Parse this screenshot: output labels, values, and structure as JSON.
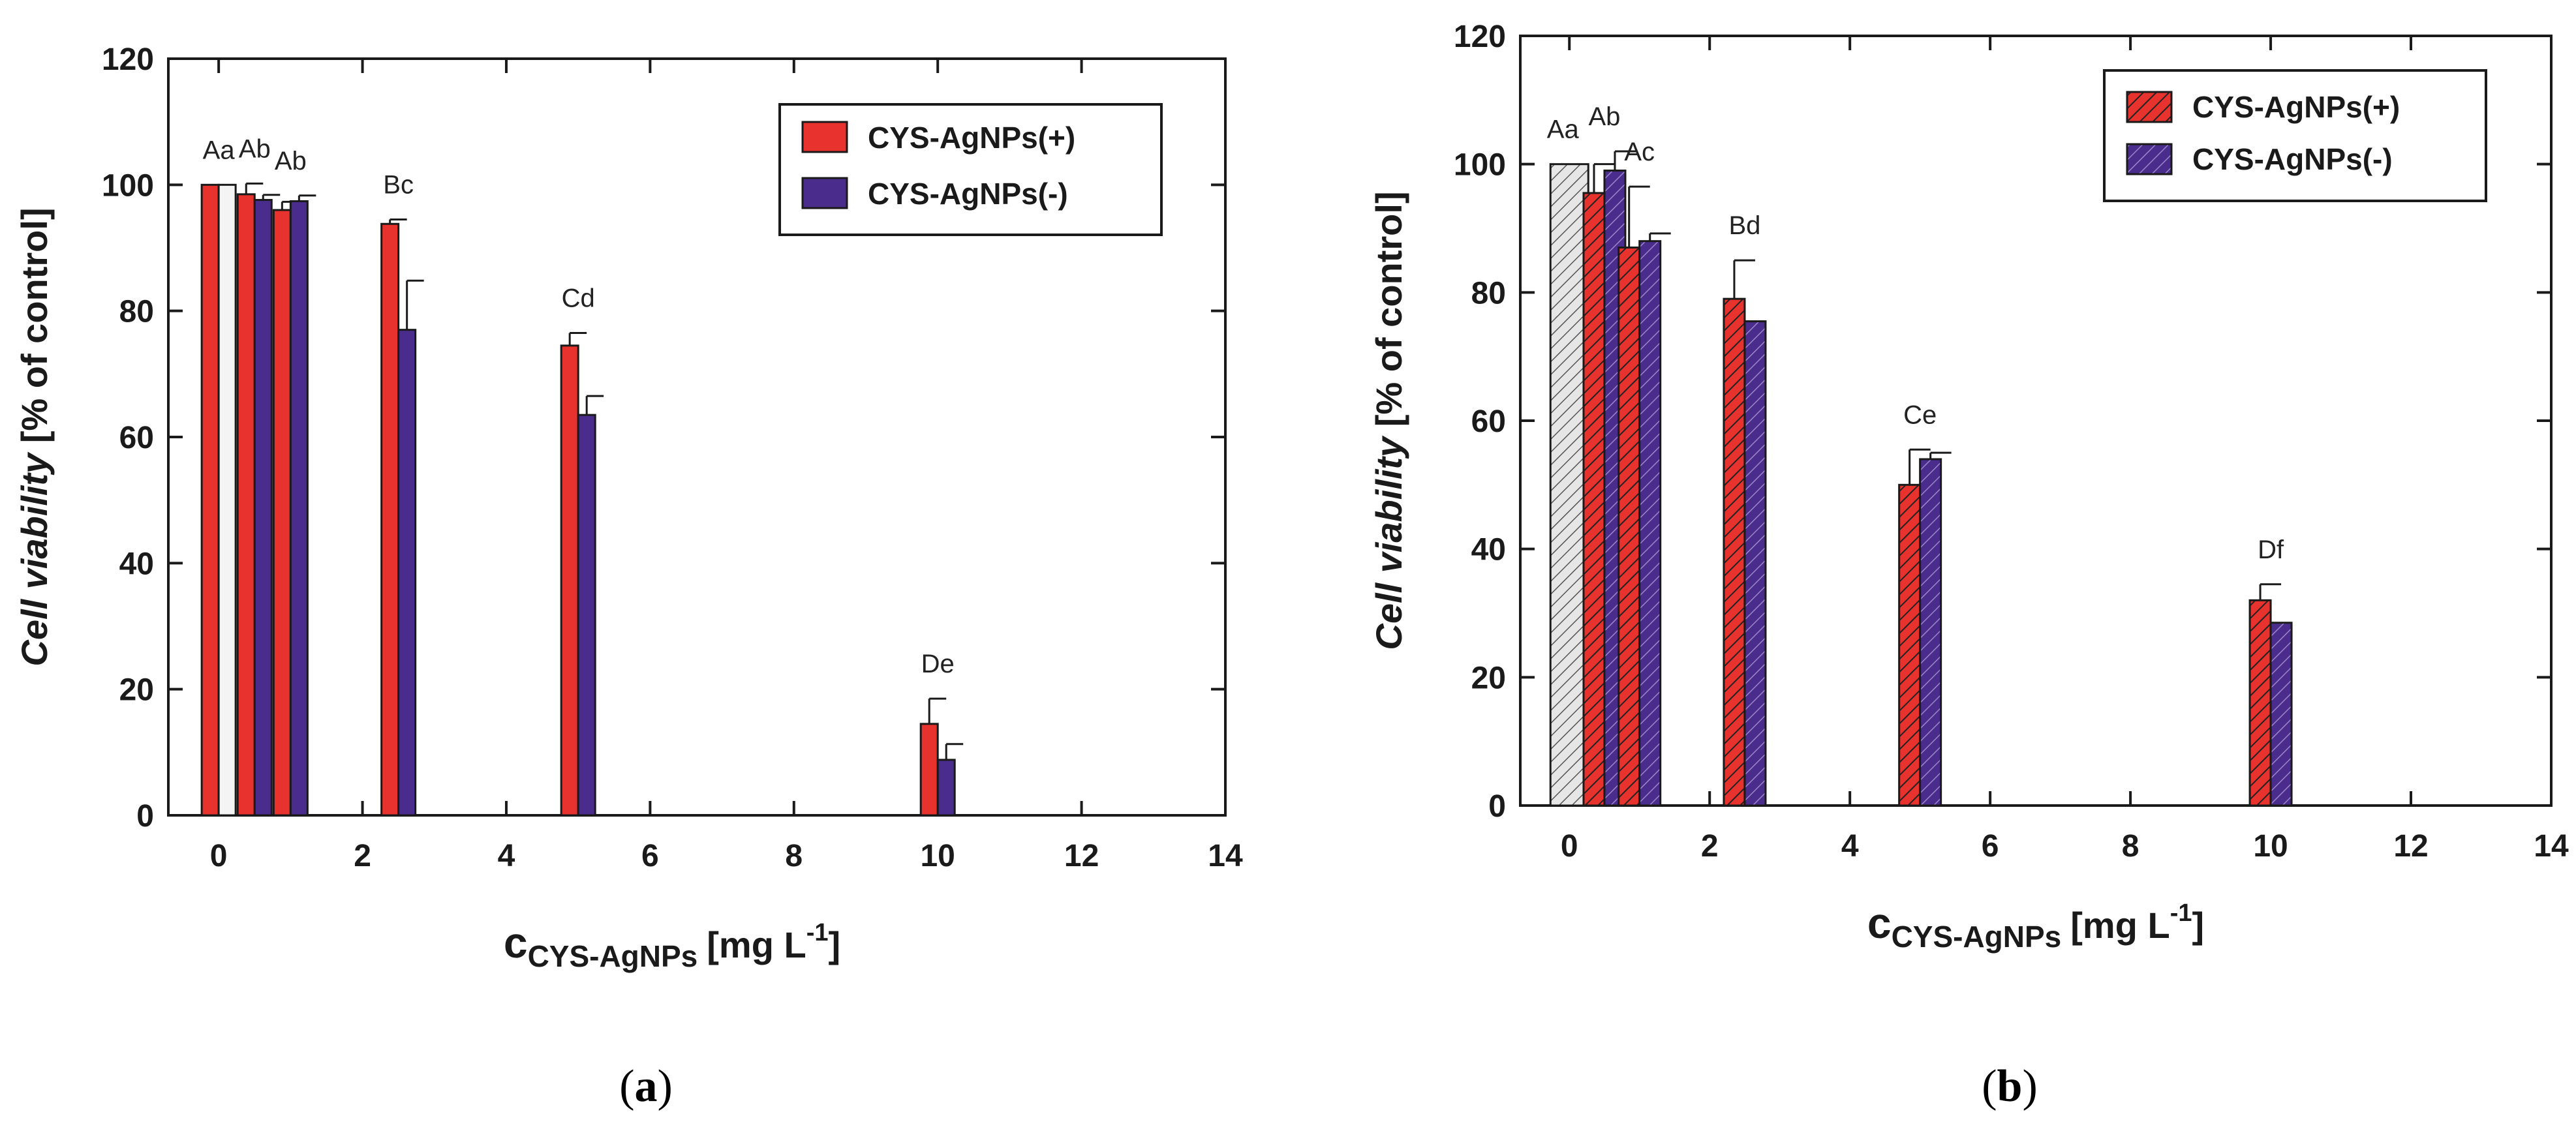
{
  "colors": {
    "plus": "#e8322e",
    "minus": "#4a2c8c",
    "control": "#f4f4f4",
    "control_b": "#dcdcdc",
    "axis": "#1a1a1a"
  },
  "chart_data": [
    {
      "type": "bar",
      "caption_prefix": "(",
      "caption_letter": "a",
      "caption_suffix": ")",
      "title": "",
      "xlabel_main": "c",
      "xlabel_sub": "CYS-AgNPs",
      "xlabel_unit": "[mg L",
      "xlabel_exp": "-1",
      "xlabel_close": "]",
      "ylabel_italic": "Cell viability",
      "ylabel_rest": "[% of control]",
      "xlim": [
        -0.7,
        14
      ],
      "ylim": [
        0,
        120
      ],
      "xticks": [
        "0",
        "2",
        "4",
        "6",
        "8",
        "10",
        "12",
        "14"
      ],
      "yticks": [
        "0",
        "20",
        "40",
        "60",
        "80",
        "100",
        "120"
      ],
      "hatched": false,
      "legend": [
        "CYS-AgNPs(+)",
        "CYS-AgNPs(-)"
      ],
      "control": {
        "x": 0,
        "value": 100,
        "error": 0,
        "label": "Aa"
      },
      "groups": [
        {
          "x": 0,
          "label": "Aa",
          "plus": 100,
          "plus_err": 0,
          "minus": null,
          "minus_err": 0
        },
        {
          "x": 0.5,
          "label": "Ab",
          "plus": 98.5,
          "plus_err": 1.7,
          "minus": 97.6,
          "minus_err": 0.8
        },
        {
          "x": 1,
          "label": "Ab",
          "plus": 96,
          "plus_err": 1.3,
          "minus": 97.4,
          "minus_err": 0.9
        },
        {
          "x": 2.5,
          "label": "Bc",
          "plus": 93.8,
          "plus_err": 0.7,
          "minus": 77,
          "minus_err": 7.8
        },
        {
          "x": 5,
          "label": "Cd",
          "plus": 74.5,
          "plus_err": 2,
          "minus": 63.5,
          "minus_err": 3
        },
        {
          "x": 10,
          "label": "De",
          "plus": 14.5,
          "plus_err": 4,
          "minus": 8.8,
          "minus_err": 2.5
        }
      ]
    },
    {
      "type": "bar",
      "caption_prefix": "(",
      "caption_letter": "b",
      "caption_suffix": ")",
      "title": "",
      "xlabel_main": "c",
      "xlabel_sub": "CYS-AgNPs",
      "xlabel_unit": "[mg L",
      "xlabel_exp": "-1",
      "xlabel_close": "]",
      "ylabel_italic": "Cell viability",
      "ylabel_rest": "[% of control]",
      "xlim": [
        -0.7,
        14
      ],
      "ylim": [
        0,
        120
      ],
      "xticks": [
        "0",
        "2",
        "4",
        "6",
        "8",
        "10",
        "12",
        "14"
      ],
      "yticks": [
        "0",
        "20",
        "40",
        "60",
        "80",
        "100",
        "120"
      ],
      "hatched": true,
      "legend": [
        "CYS-AgNPs(+)",
        "CYS-AgNPs(-)"
      ],
      "control": {
        "x": 0,
        "value": 100,
        "error": 0,
        "label": "Aa"
      },
      "groups": [
        {
          "x": 0.5,
          "label": "Ab",
          "plus": 95.5,
          "plus_err": 4.5,
          "minus": 99,
          "minus_err": 3
        },
        {
          "x": 1,
          "label": "Ac",
          "plus": 87,
          "plus_err": 9.5,
          "minus": 88,
          "minus_err": 1.2
        },
        {
          "x": 2.5,
          "label": "Bd",
          "plus": 79,
          "plus_err": 6,
          "minus": 75.5,
          "minus_err": 0
        },
        {
          "x": 5,
          "label": "Ce",
          "plus": 50,
          "plus_err": 5.5,
          "minus": 54,
          "minus_err": 1
        },
        {
          "x": 10,
          "label": "Df",
          "plus": 32,
          "plus_err": 2.5,
          "minus": 28.5,
          "minus_err": 0
        }
      ]
    }
  ]
}
